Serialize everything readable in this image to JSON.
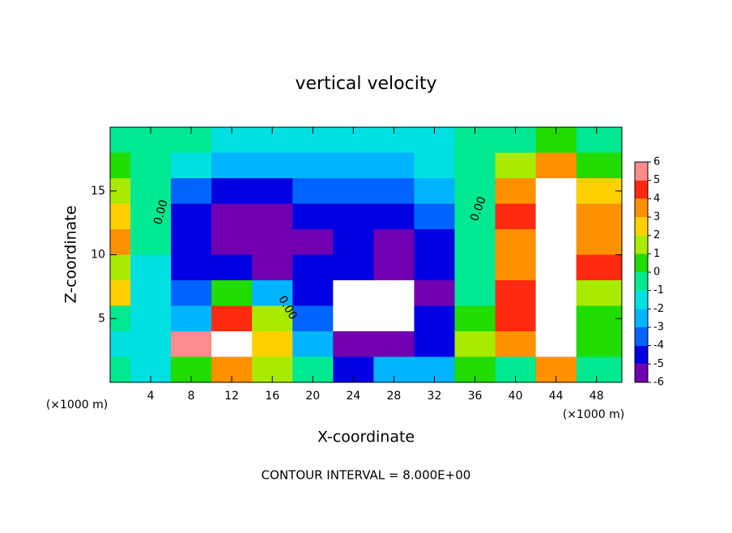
{
  "chart_data": {
    "type": "contour",
    "title": "vertical velocity",
    "x_label": "X-coordinate",
    "y_label": "Z-coordinate",
    "x_unit_labels": [
      "(×1000 m)",
      "(×1000 m)"
    ],
    "footer": "CONTOUR INTERVAL = 8.000E+00",
    "contour_labels": [
      "0.00",
      "0.00",
      "0.00"
    ],
    "x": [
      0,
      4,
      8,
      12,
      16,
      20,
      24,
      28,
      32,
      36,
      40,
      44,
      48
    ],
    "y": [
      19,
      17,
      15,
      13,
      11,
      9,
      7,
      5,
      3,
      1
    ],
    "z": [
      [
        0,
        0,
        0,
        -1,
        -1,
        -1,
        -1,
        -1,
        -1,
        0,
        0,
        1,
        0
      ],
      [
        1,
        0,
        -1,
        -2,
        -2,
        -2,
        -2,
        -2,
        -1,
        0,
        2,
        4,
        1
      ],
      [
        2,
        0,
        -3,
        -4,
        -4,
        -3,
        -3,
        -3,
        -2,
        0,
        4,
        7,
        3
      ],
      [
        3,
        0,
        -4,
        -5,
        -5,
        -4,
        -4,
        -4,
        -3,
        0,
        5,
        8,
        4
      ],
      [
        4,
        0,
        -4,
        -5,
        -5,
        -5,
        -4,
        -5,
        -4,
        0,
        4,
        8,
        4
      ],
      [
        2,
        -1,
        -4,
        -4,
        -5,
        -4,
        -4,
        -6,
        -4,
        0,
        4,
        8,
        5
      ],
      [
        3,
        -1,
        -3,
        1,
        -2,
        -4,
        -7,
        -7,
        -5,
        0,
        5,
        8,
        2
      ],
      [
        0,
        -1,
        -2,
        5,
        2,
        -3,
        -7,
        -7,
        -4,
        1,
        5,
        8,
        1
      ],
      [
        -1,
        -1,
        6,
        7,
        3,
        -2,
        -6,
        -6,
        -4,
        2,
        4,
        8,
        1
      ],
      [
        0,
        -1,
        1,
        4,
        2,
        0,
        -4,
        -2,
        -2,
        1,
        0,
        4,
        0
      ]
    ],
    "xlim": [
      0,
      50.5
    ],
    "ylim": [
      0,
      20
    ],
    "xticks": [
      4,
      8,
      12,
      16,
      20,
      24,
      28,
      32,
      36,
      40,
      44,
      48
    ],
    "yticks": [
      5,
      10,
      15
    ],
    "levels": [
      -6,
      -5,
      -4,
      -3,
      -2,
      -1,
      0,
      1,
      2,
      3,
      4,
      5,
      6
    ],
    "level_colors": [
      "#7000b0",
      "#0000e0",
      "#0064ff",
      "#00b4ff",
      "#00e0e0",
      "#00e890",
      "#20dc00",
      "#a8ea00",
      "#ffd000",
      "#ff9000",
      "#ff2a10",
      "#ff8c8c"
    ],
    "out_of_range_color": "#ffffff"
  }
}
